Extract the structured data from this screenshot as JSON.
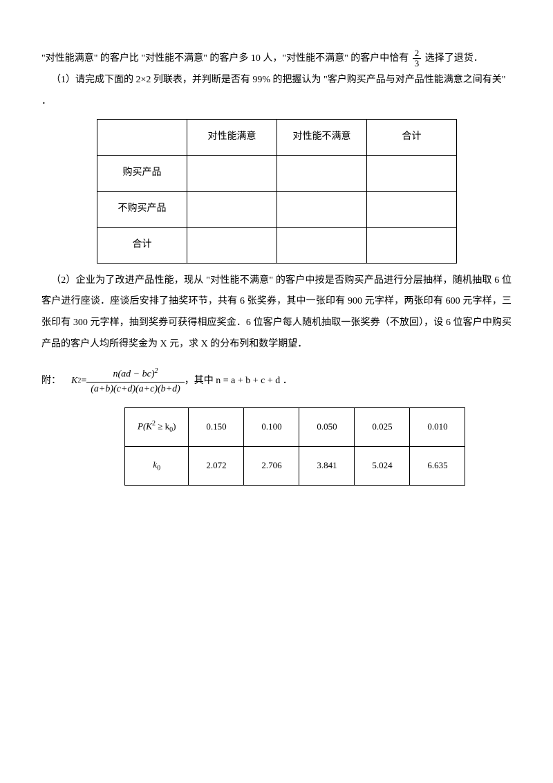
{
  "intro": {
    "line1_a": "\"对性能满意\" 的客户比 \"对性能不满意\" 的客户多 10 人，\"对性能不满意\" 的客户中恰有",
    "frac_num": "2",
    "frac_den": "3",
    "line1_b": "选择了退货．",
    "q1": "（1）请完成下面的 2×2 列联表，并判断是否有 99% 的把握认为 \"客户购买产品与对产品性能满意之间有关\"",
    "dot": "．"
  },
  "table1": {
    "h_blank": "",
    "h_sat": "对性能满意",
    "h_unsat": "对性能不满意",
    "h_total": "合计",
    "r1": "购买产品",
    "r2": "不购买产品",
    "r3": "合计"
  },
  "q2": {
    "p1": "（2）企业为了改进产品性能，现从 \"对性能不满意\" 的客户中按是否购买产品进行分层抽样，随机抽取 6 位客户进行座谈．座谈后安排了抽奖环节，共有 6 张奖券，其中一张印有 900 元字样，两张印有 600 元字样，三张印有 300 元字样，抽到奖券可获得相应奖金．6 位客户每人随机抽取一张奖券（不放回），设 6 位客户中购买产品的客户人均所得奖金为 X 元，求 X 的分布列和数学期望．"
  },
  "formula": {
    "label": "附：",
    "k2": "K",
    "eq": " = ",
    "num": "n(ad − bc)",
    "sq": "2",
    "den": "(a+b)(c+d)(a+c)(b+d)",
    "where": "，其中 n = a + b + c + d ．"
  },
  "table2": {
    "header": {
      "p": "P(K",
      "sq": "2",
      "geq": " ≥ k",
      "sub0": "0",
      "close": ")"
    },
    "k0": "k",
    "k0sub": "0",
    "p_values": [
      "0.150",
      "0.100",
      "0.050",
      "0.025",
      "0.010"
    ],
    "k_values": [
      "2.072",
      "2.706",
      "3.841",
      "5.024",
      "6.635"
    ]
  }
}
